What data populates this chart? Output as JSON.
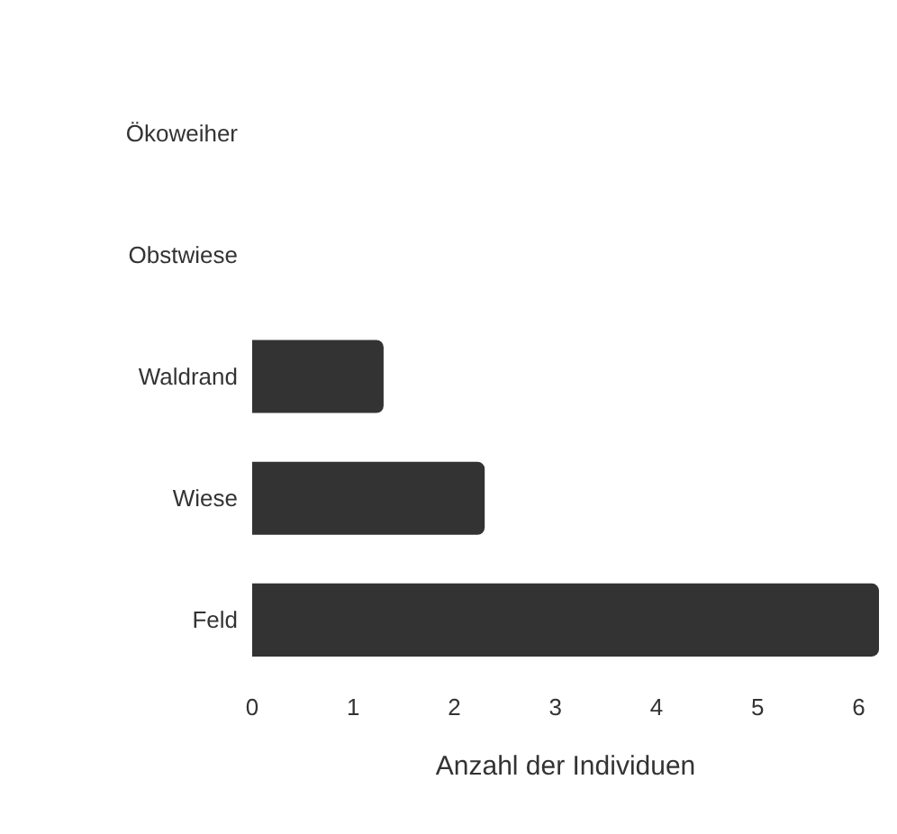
{
  "chart_data": {
    "type": "bar",
    "orientation": "horizontal",
    "xlabel": "Anzahl der Individuen",
    "categories": [
      "Ökoweiher",
      "Obstwiese",
      "Waldrand",
      "Wiese",
      "Feld"
    ],
    "values": [
      0,
      0,
      1.3,
      2.3,
      6.2
    ],
    "color": "#333333",
    "xlim": [
      0,
      6.2
    ],
    "xticks": [
      0,
      1,
      2,
      3,
      4,
      5,
      6
    ]
  }
}
